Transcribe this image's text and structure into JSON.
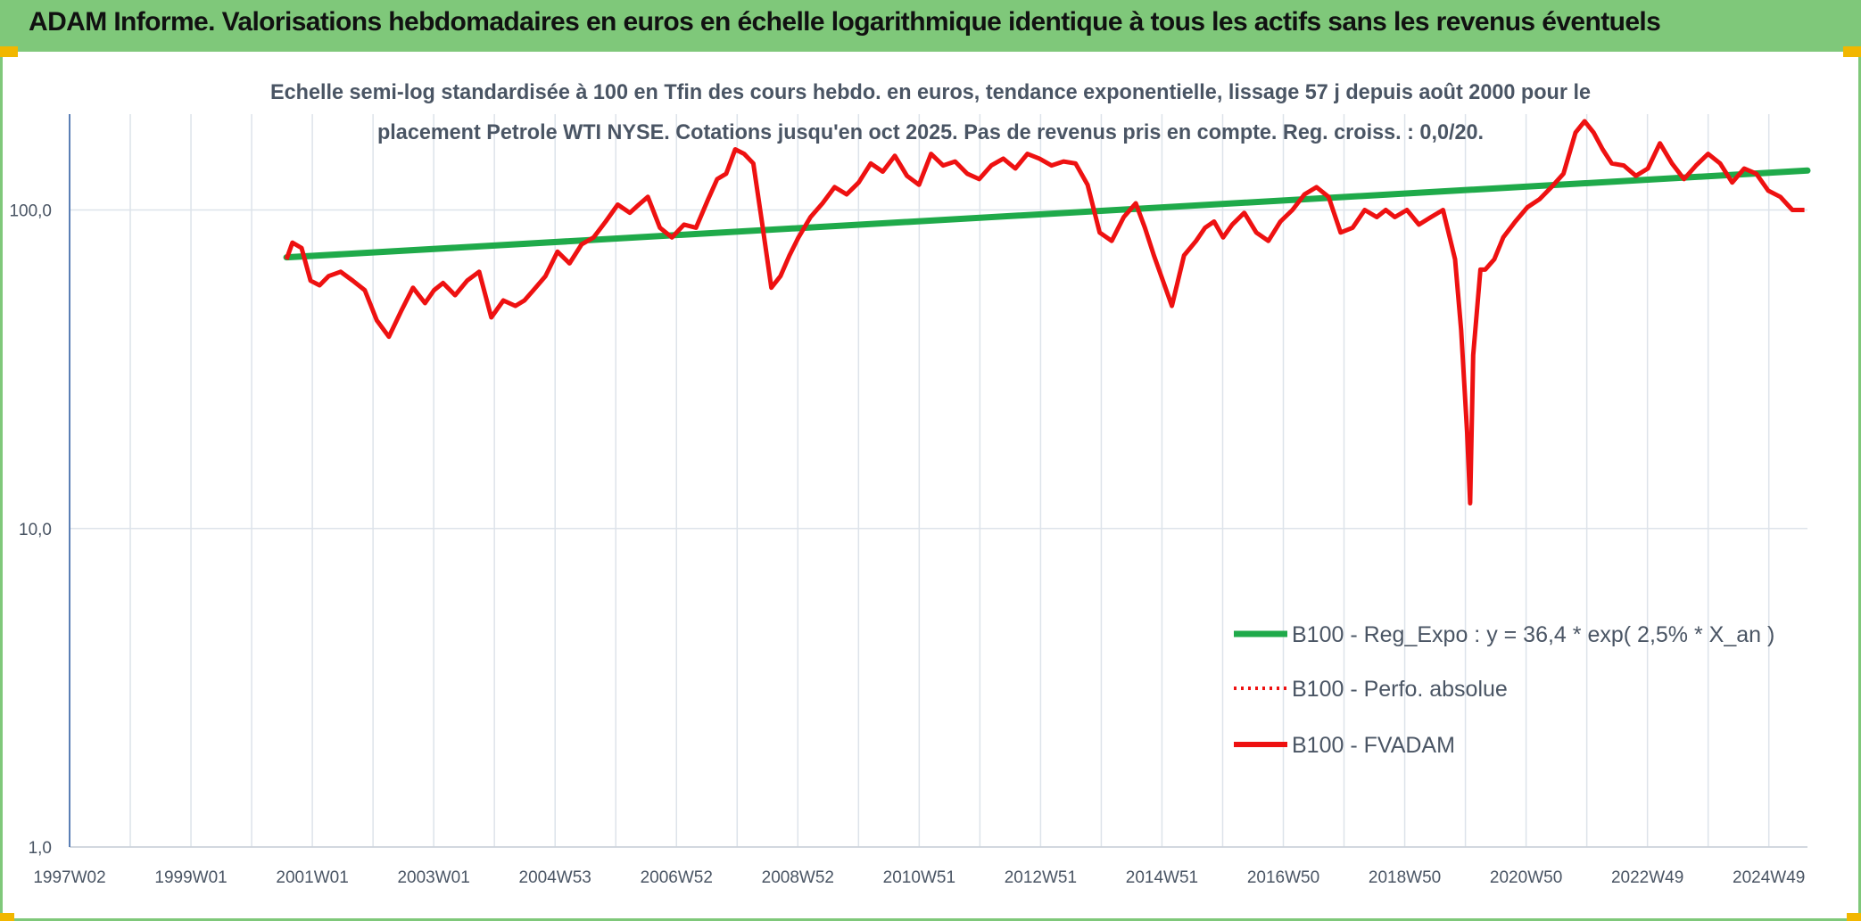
{
  "header": {
    "title": "ADAM Informe. Valorisations hebdomadaires en euros en échelle logarithmique identique à tous les actifs sans les revenus éventuels"
  },
  "colors": {
    "header_bg": "#7fc87a",
    "corner_marker": "#f1b700",
    "trend_line": "#1faa4a",
    "fvadam_line": "#ee1111",
    "perfo_line": "#ee1111",
    "grid": "#dde3ea",
    "axis": "#5b7fb5",
    "text": "#4a5564"
  },
  "chart_data": {
    "type": "line",
    "title_lines": [
      "Echelle semi-log standardisée à 100 en Tfin des cours hebdo. en euros, tendance exponentielle, lissage 57 j depuis août 2000 pour le",
      "placement Petrole WTI NYSE. Cotations jusqu'en oct 2025. Pas de revenus pris en compte. Reg. croiss. : 0,0/20."
    ],
    "y_scale": "log",
    "ylim": [
      1,
      200
    ],
    "y_ticks": [
      {
        "value": 100,
        "label": "100,0"
      },
      {
        "value": 10,
        "label": "10,0"
      },
      {
        "value": 1,
        "label": "1,0"
      }
    ],
    "x_labels": [
      "1997W02",
      "1999W01",
      "2001W01",
      "2003W01",
      "2004W53",
      "2006W52",
      "2008W52",
      "2010W51",
      "2012W51",
      "2014W51",
      "2016W50",
      "2018W50",
      "2020W50",
      "2022W49",
      "2024W49"
    ],
    "xlim": [
      1997.0,
      2025.85
    ],
    "grid": "vertical and horizontal major",
    "legend_position": "bottom-right",
    "legend": [
      {
        "label": "B100 - Reg_Expo : y = 36,4 * exp( 2,5% *  X_an )",
        "style": "solid-green"
      },
      {
        "label": "B100 - Perfo. absolue",
        "style": "dotted-red"
      },
      {
        "label": "B100 - FVADAM",
        "style": "solid-red"
      }
    ],
    "series": [
      {
        "name": "B100 - Reg_Expo : y = 36,4 * exp( 2,5% *  X_an )",
        "x": [
          2000.6,
          2025.85
        ],
        "y": [
          71,
          133
        ]
      },
      {
        "name": "B100 - FVADAM",
        "x": [
          2000.6,
          2000.7,
          2000.85,
          2001.0,
          2001.15,
          2001.3,
          2001.5,
          2001.7,
          2001.9,
          2002.1,
          2002.3,
          2002.5,
          2002.7,
          2002.9,
          2003.05,
          2003.2,
          2003.4,
          2003.6,
          2003.8,
          2004.0,
          2004.2,
          2004.4,
          2004.55,
          2004.7,
          2004.9,
          2005.1,
          2005.3,
          2005.5,
          2005.7,
          2005.9,
          2006.1,
          2006.3,
          2006.45,
          2006.6,
          2006.8,
          2007.0,
          2007.2,
          2007.4,
          2007.6,
          2007.75,
          2007.9,
          2008.05,
          2008.2,
          2008.35,
          2008.5,
          2008.65,
          2008.8,
          2008.95,
          2009.1,
          2009.3,
          2009.5,
          2009.7,
          2009.9,
          2010.1,
          2010.3,
          2010.5,
          2010.7,
          2010.9,
          2011.1,
          2011.3,
          2011.5,
          2011.7,
          2011.9,
          2012.1,
          2012.3,
          2012.5,
          2012.7,
          2012.9,
          2013.1,
          2013.3,
          2013.5,
          2013.7,
          2013.9,
          2014.1,
          2014.3,
          2014.5,
          2014.7,
          2014.85,
          2015.0,
          2015.15,
          2015.3,
          2015.5,
          2015.7,
          2015.85,
          2016.0,
          2016.15,
          2016.3,
          2016.5,
          2016.7,
          2016.9,
          2017.1,
          2017.3,
          2017.5,
          2017.7,
          2017.9,
          2018.1,
          2018.3,
          2018.5,
          2018.7,
          2018.85,
          2019.0,
          2019.2,
          2019.4,
          2019.6,
          2019.8,
          2020.0,
          2020.1,
          2020.2,
          2020.25,
          2020.3,
          2020.35,
          2020.42,
          2020.5,
          2020.65,
          2020.8,
          2021.0,
          2021.2,
          2021.4,
          2021.6,
          2021.8,
          2022.0,
          2022.15,
          2022.3,
          2022.45,
          2022.6,
          2022.8,
          2023.0,
          2023.2,
          2023.4,
          2023.6,
          2023.8,
          2024.0,
          2024.2,
          2024.4,
          2024.6,
          2024.8,
          2025.0,
          2025.2,
          2025.4,
          2025.6,
          2025.8
        ],
        "y": [
          70,
          79,
          76,
          60,
          58,
          62,
          64,
          60,
          56,
          45,
          40,
          48,
          57,
          51,
          56,
          59,
          54,
          60,
          64,
          46,
          52,
          50,
          52,
          56,
          62,
          74,
          68,
          78,
          82,
          92,
          104,
          98,
          104,
          110,
          88,
          82,
          90,
          88,
          108,
          125,
          130,
          155,
          150,
          140,
          90,
          57,
          62,
          72,
          82,
          95,
          105,
          118,
          112,
          122,
          140,
          132,
          148,
          128,
          120,
          150,
          138,
          142,
          130,
          125,
          138,
          145,
          135,
          150,
          145,
          138,
          142,
          140,
          120,
          85,
          80,
          95,
          105,
          88,
          72,
          60,
          50,
          72,
          80,
          88,
          92,
          82,
          90,
          98,
          85,
          80,
          92,
          100,
          112,
          118,
          110,
          85,
          88,
          100,
          95,
          100,
          95,
          100,
          90,
          95,
          100,
          70,
          42,
          20,
          12,
          35,
          45,
          65,
          65,
          70,
          82,
          92,
          102,
          108,
          118,
          130,
          175,
          190,
          175,
          155,
          140,
          138,
          128,
          135,
          162,
          140,
          125,
          138,
          150,
          140,
          122,
          135,
          130,
          115,
          110,
          100,
          100
        ]
      }
    ]
  }
}
